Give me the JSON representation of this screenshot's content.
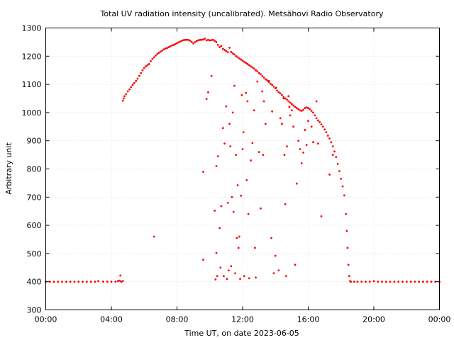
{
  "chart_data": {
    "type": "scatter",
    "title": "Total UV radiation intensity (uncalibrated). Metsähovi Radio Observatory",
    "xlabel": "Time UT, on date 2023-06-05",
    "ylabel": "Arbitrary unit",
    "xlim": [
      0,
      24
    ],
    "ylim": [
      300,
      1300
    ],
    "x_ticks": [
      0,
      4,
      8,
      12,
      16,
      20,
      24
    ],
    "x_tick_labels": [
      "00:00",
      "04:00",
      "08:00",
      "12:00",
      "16:00",
      "20:00",
      "00:00"
    ],
    "y_ticks": [
      300,
      400,
      500,
      600,
      700,
      800,
      900,
      1000,
      1100,
      1200,
      1300
    ],
    "y_tick_labels": [
      "300",
      "400",
      "500",
      "600",
      "700",
      "800",
      "900",
      "1000",
      "1100",
      "1200",
      "1300"
    ],
    "grid": true,
    "legend": "none",
    "series": [
      {
        "color": "#ff0000",
        "marker": "dot",
        "points": [
          [
            0.0,
            400
          ],
          [
            0.25,
            400
          ],
          [
            0.5,
            400
          ],
          [
            0.75,
            400
          ],
          [
            1.0,
            400
          ],
          [
            1.25,
            400
          ],
          [
            1.5,
            400
          ],
          [
            1.75,
            400
          ],
          [
            2.0,
            400
          ],
          [
            2.25,
            400
          ],
          [
            2.5,
            400
          ],
          [
            2.75,
            400
          ],
          [
            3.0,
            400
          ],
          [
            3.2,
            402
          ],
          [
            3.5,
            400
          ],
          [
            3.75,
            400
          ],
          [
            4.0,
            400
          ],
          [
            4.25,
            400
          ],
          [
            4.4,
            402
          ],
          [
            4.5,
            404
          ],
          [
            4.55,
            422
          ],
          [
            4.6,
            400
          ],
          [
            4.7,
            402
          ],
          [
            4.7,
            1042
          ],
          [
            4.75,
            1050
          ],
          [
            4.8,
            1058
          ],
          [
            4.9,
            1065
          ],
          [
            5.0,
            1075
          ],
          [
            5.1,
            1082
          ],
          [
            5.2,
            1090
          ],
          [
            5.3,
            1098
          ],
          [
            5.4,
            1105
          ],
          [
            5.5,
            1112
          ],
          [
            5.6,
            1120
          ],
          [
            5.7,
            1130
          ],
          [
            5.8,
            1140
          ],
          [
            5.9,
            1150
          ],
          [
            6.0,
            1158
          ],
          [
            6.1,
            1164
          ],
          [
            6.2,
            1168
          ],
          [
            6.3,
            1172
          ],
          [
            6.4,
            1182
          ],
          [
            6.5,
            1190
          ],
          [
            6.6,
            1196
          ],
          [
            6.7,
            1202
          ],
          [
            6.8,
            1208
          ],
          [
            6.9,
            1212
          ],
          [
            7.0,
            1216
          ],
          [
            7.1,
            1220
          ],
          [
            7.2,
            1224
          ],
          [
            7.3,
            1227
          ],
          [
            7.4,
            1229
          ],
          [
            7.5,
            1232
          ],
          [
            7.6,
            1235
          ],
          [
            7.7,
            1238
          ],
          [
            7.8,
            1240
          ],
          [
            7.9,
            1243
          ],
          [
            8.0,
            1246
          ],
          [
            8.1,
            1249
          ],
          [
            8.2,
            1252
          ],
          [
            8.3,
            1255
          ],
          [
            8.4,
            1257
          ],
          [
            8.5,
            1258
          ],
          [
            8.6,
            1258
          ],
          [
            8.7,
            1258
          ],
          [
            8.8,
            1255
          ],
          [
            8.9,
            1250
          ],
          [
            9.0,
            1245
          ],
          [
            9.1,
            1250
          ],
          [
            9.2,
            1254
          ],
          [
            9.3,
            1256
          ],
          [
            9.4,
            1258
          ],
          [
            9.5,
            1258
          ],
          [
            9.6,
            1259
          ],
          [
            9.7,
            1262
          ],
          [
            9.8,
            1256
          ],
          [
            9.9,
            1258
          ],
          [
            10.0,
            1256
          ],
          [
            10.1,
            1257
          ],
          [
            10.2,
            1258
          ],
          [
            10.3,
            1254
          ],
          [
            10.4,
            1250
          ],
          [
            10.5,
            1240
          ],
          [
            10.6,
            1232
          ],
          [
            10.7,
            1236
          ],
          [
            10.8,
            1226
          ],
          [
            10.9,
            1222
          ],
          [
            11.0,
            1218
          ],
          [
            11.1,
            1214
          ],
          [
            11.2,
            1230
          ],
          [
            11.3,
            1215
          ],
          [
            11.4,
            1210
          ],
          [
            11.5,
            1206
          ],
          [
            11.6,
            1200
          ],
          [
            11.7,
            1196
          ],
          [
            11.8,
            1192
          ],
          [
            11.9,
            1188
          ],
          [
            12.0,
            1184
          ],
          [
            12.1,
            1180
          ],
          [
            12.2,
            1176
          ],
          [
            12.3,
            1172
          ],
          [
            12.4,
            1168
          ],
          [
            12.5,
            1164
          ],
          [
            12.6,
            1160
          ],
          [
            12.7,
            1156
          ],
          [
            12.8,
            1150
          ],
          [
            12.9,
            1146
          ],
          [
            13.0,
            1140
          ],
          [
            13.1,
            1136
          ],
          [
            13.2,
            1130
          ],
          [
            13.3,
            1124
          ],
          [
            13.4,
            1118
          ],
          [
            13.5,
            1114
          ],
          [
            13.6,
            1108
          ],
          [
            13.7,
            1102
          ],
          [
            13.8,
            1098
          ],
          [
            13.9,
            1092
          ],
          [
            14.0,
            1086
          ],
          [
            14.1,
            1078
          ],
          [
            14.2,
            1072
          ],
          [
            14.3,
            1068
          ],
          [
            14.4,
            1062
          ],
          [
            14.5,
            1055
          ],
          [
            14.6,
            1050
          ],
          [
            14.7,
            1046
          ],
          [
            14.8,
            1040
          ],
          [
            14.9,
            1035
          ],
          [
            15.0,
            1030
          ],
          [
            15.1,
            1025
          ],
          [
            15.2,
            1020
          ],
          [
            15.3,
            1016
          ],
          [
            15.4,
            1012
          ],
          [
            15.5,
            1008
          ],
          [
            15.6,
            1006
          ],
          [
            15.7,
            1010
          ],
          [
            15.8,
            1016
          ],
          [
            15.9,
            1018
          ],
          [
            16.0,
            1016
          ],
          [
            16.1,
            1012
          ],
          [
            16.2,
            1006
          ],
          [
            16.3,
            1000
          ],
          [
            16.4,
            990
          ],
          [
            16.5,
            980
          ],
          [
            16.6,
            972
          ],
          [
            16.7,
            966
          ],
          [
            16.8,
            958
          ],
          [
            16.9,
            950
          ],
          [
            17.0,
            940
          ],
          [
            17.1,
            930
          ],
          [
            17.2,
            918
          ],
          [
            17.3,
            908
          ],
          [
            17.4,
            895
          ],
          [
            17.5,
            880
          ],
          [
            17.6,
            862
          ],
          [
            17.7,
            842
          ],
          [
            17.8,
            818
          ],
          [
            17.9,
            792
          ],
          [
            18.0,
            765
          ],
          [
            18.1,
            738
          ],
          [
            18.2,
            706
          ],
          [
            18.3,
            640
          ],
          [
            18.35,
            580
          ],
          [
            18.4,
            520
          ],
          [
            18.45,
            460
          ],
          [
            18.5,
            420
          ],
          [
            18.55,
            402
          ],
          [
            18.6,
            400
          ],
          [
            18.8,
            400
          ],
          [
            19.0,
            400
          ],
          [
            19.25,
            400
          ],
          [
            19.5,
            400
          ],
          [
            19.75,
            400
          ],
          [
            20.0,
            402
          ],
          [
            20.25,
            400
          ],
          [
            20.5,
            400
          ],
          [
            20.75,
            400
          ],
          [
            21.0,
            400
          ],
          [
            21.25,
            400
          ],
          [
            21.5,
            400
          ],
          [
            21.75,
            400
          ],
          [
            22.0,
            400
          ],
          [
            22.25,
            400
          ],
          [
            22.5,
            400
          ],
          [
            22.75,
            400
          ],
          [
            23.0,
            400
          ],
          [
            23.25,
            400
          ],
          [
            23.5,
            400
          ],
          [
            23.75,
            400
          ],
          [
            24.0,
            400
          ],
          [
            6.6,
            560
          ],
          [
            9.6,
            478
          ],
          [
            9.6,
            790
          ],
          [
            9.8,
            1048
          ],
          [
            9.9,
            1072
          ],
          [
            10.1,
            1130
          ],
          [
            10.3,
            652
          ],
          [
            10.35,
            408
          ],
          [
            10.4,
            502
          ],
          [
            10.4,
            810
          ],
          [
            10.45,
            420
          ],
          [
            10.5,
            845
          ],
          [
            10.6,
            590
          ],
          [
            10.65,
            450
          ],
          [
            10.7,
            668
          ],
          [
            10.8,
            945
          ],
          [
            10.85,
            420
          ],
          [
            10.9,
            890
          ],
          [
            11.0,
            1022
          ],
          [
            11.05,
            410
          ],
          [
            11.1,
            680
          ],
          [
            11.15,
            440
          ],
          [
            11.2,
            960
          ],
          [
            11.25,
            880
          ],
          [
            11.3,
            455
          ],
          [
            11.35,
            700
          ],
          [
            11.4,
            1000
          ],
          [
            11.45,
            648
          ],
          [
            11.5,
            1095
          ],
          [
            11.55,
            430
          ],
          [
            11.6,
            850
          ],
          [
            11.65,
            555
          ],
          [
            11.7,
            742
          ],
          [
            11.75,
            520
          ],
          [
            11.8,
            560
          ],
          [
            11.85,
            410
          ],
          [
            11.9,
            705
          ],
          [
            11.95,
            1062
          ],
          [
            12.0,
            870
          ],
          [
            12.05,
            930
          ],
          [
            12.1,
            420
          ],
          [
            12.2,
            1070
          ],
          [
            12.25,
            760
          ],
          [
            12.3,
            1040
          ],
          [
            12.35,
            640
          ],
          [
            12.4,
            412
          ],
          [
            12.5,
            830
          ],
          [
            12.6,
            892
          ],
          [
            12.7,
            1008
          ],
          [
            12.75,
            520
          ],
          [
            12.8,
            415
          ],
          [
            12.9,
            1110
          ],
          [
            13.0,
            860
          ],
          [
            13.1,
            660
          ],
          [
            13.2,
            1075
          ],
          [
            13.25,
            850
          ],
          [
            13.3,
            1040
          ],
          [
            13.4,
            960
          ],
          [
            13.6,
            1112
          ],
          [
            13.75,
            555
          ],
          [
            13.8,
            1004
          ],
          [
            13.9,
            430
          ],
          [
            14.0,
            492
          ],
          [
            14.05,
            1088
          ],
          [
            14.2,
            440
          ],
          [
            14.3,
            980
          ],
          [
            14.4,
            960
          ],
          [
            14.5,
            1050
          ],
          [
            14.55,
            850
          ],
          [
            14.6,
            675
          ],
          [
            14.65,
            420
          ],
          [
            14.7,
            880
          ],
          [
            14.8,
            1058
          ],
          [
            14.85,
            1020
          ],
          [
            14.9,
            990
          ],
          [
            15.0,
            1008
          ],
          [
            15.1,
            950
          ],
          [
            15.2,
            460
          ],
          [
            15.3,
            748
          ],
          [
            15.4,
            900
          ],
          [
            15.5,
            870
          ],
          [
            15.6,
            820
          ],
          [
            15.7,
            858
          ],
          [
            15.8,
            938
          ],
          [
            15.9,
            885
          ],
          [
            16.0,
            970
          ],
          [
            16.2,
            950
          ],
          [
            16.3,
            895
          ],
          [
            16.5,
            1040
          ],
          [
            16.6,
            890
          ],
          [
            16.8,
            632
          ],
          [
            17.3,
            780
          ],
          [
            17.5,
            850
          ]
        ]
      }
    ]
  }
}
